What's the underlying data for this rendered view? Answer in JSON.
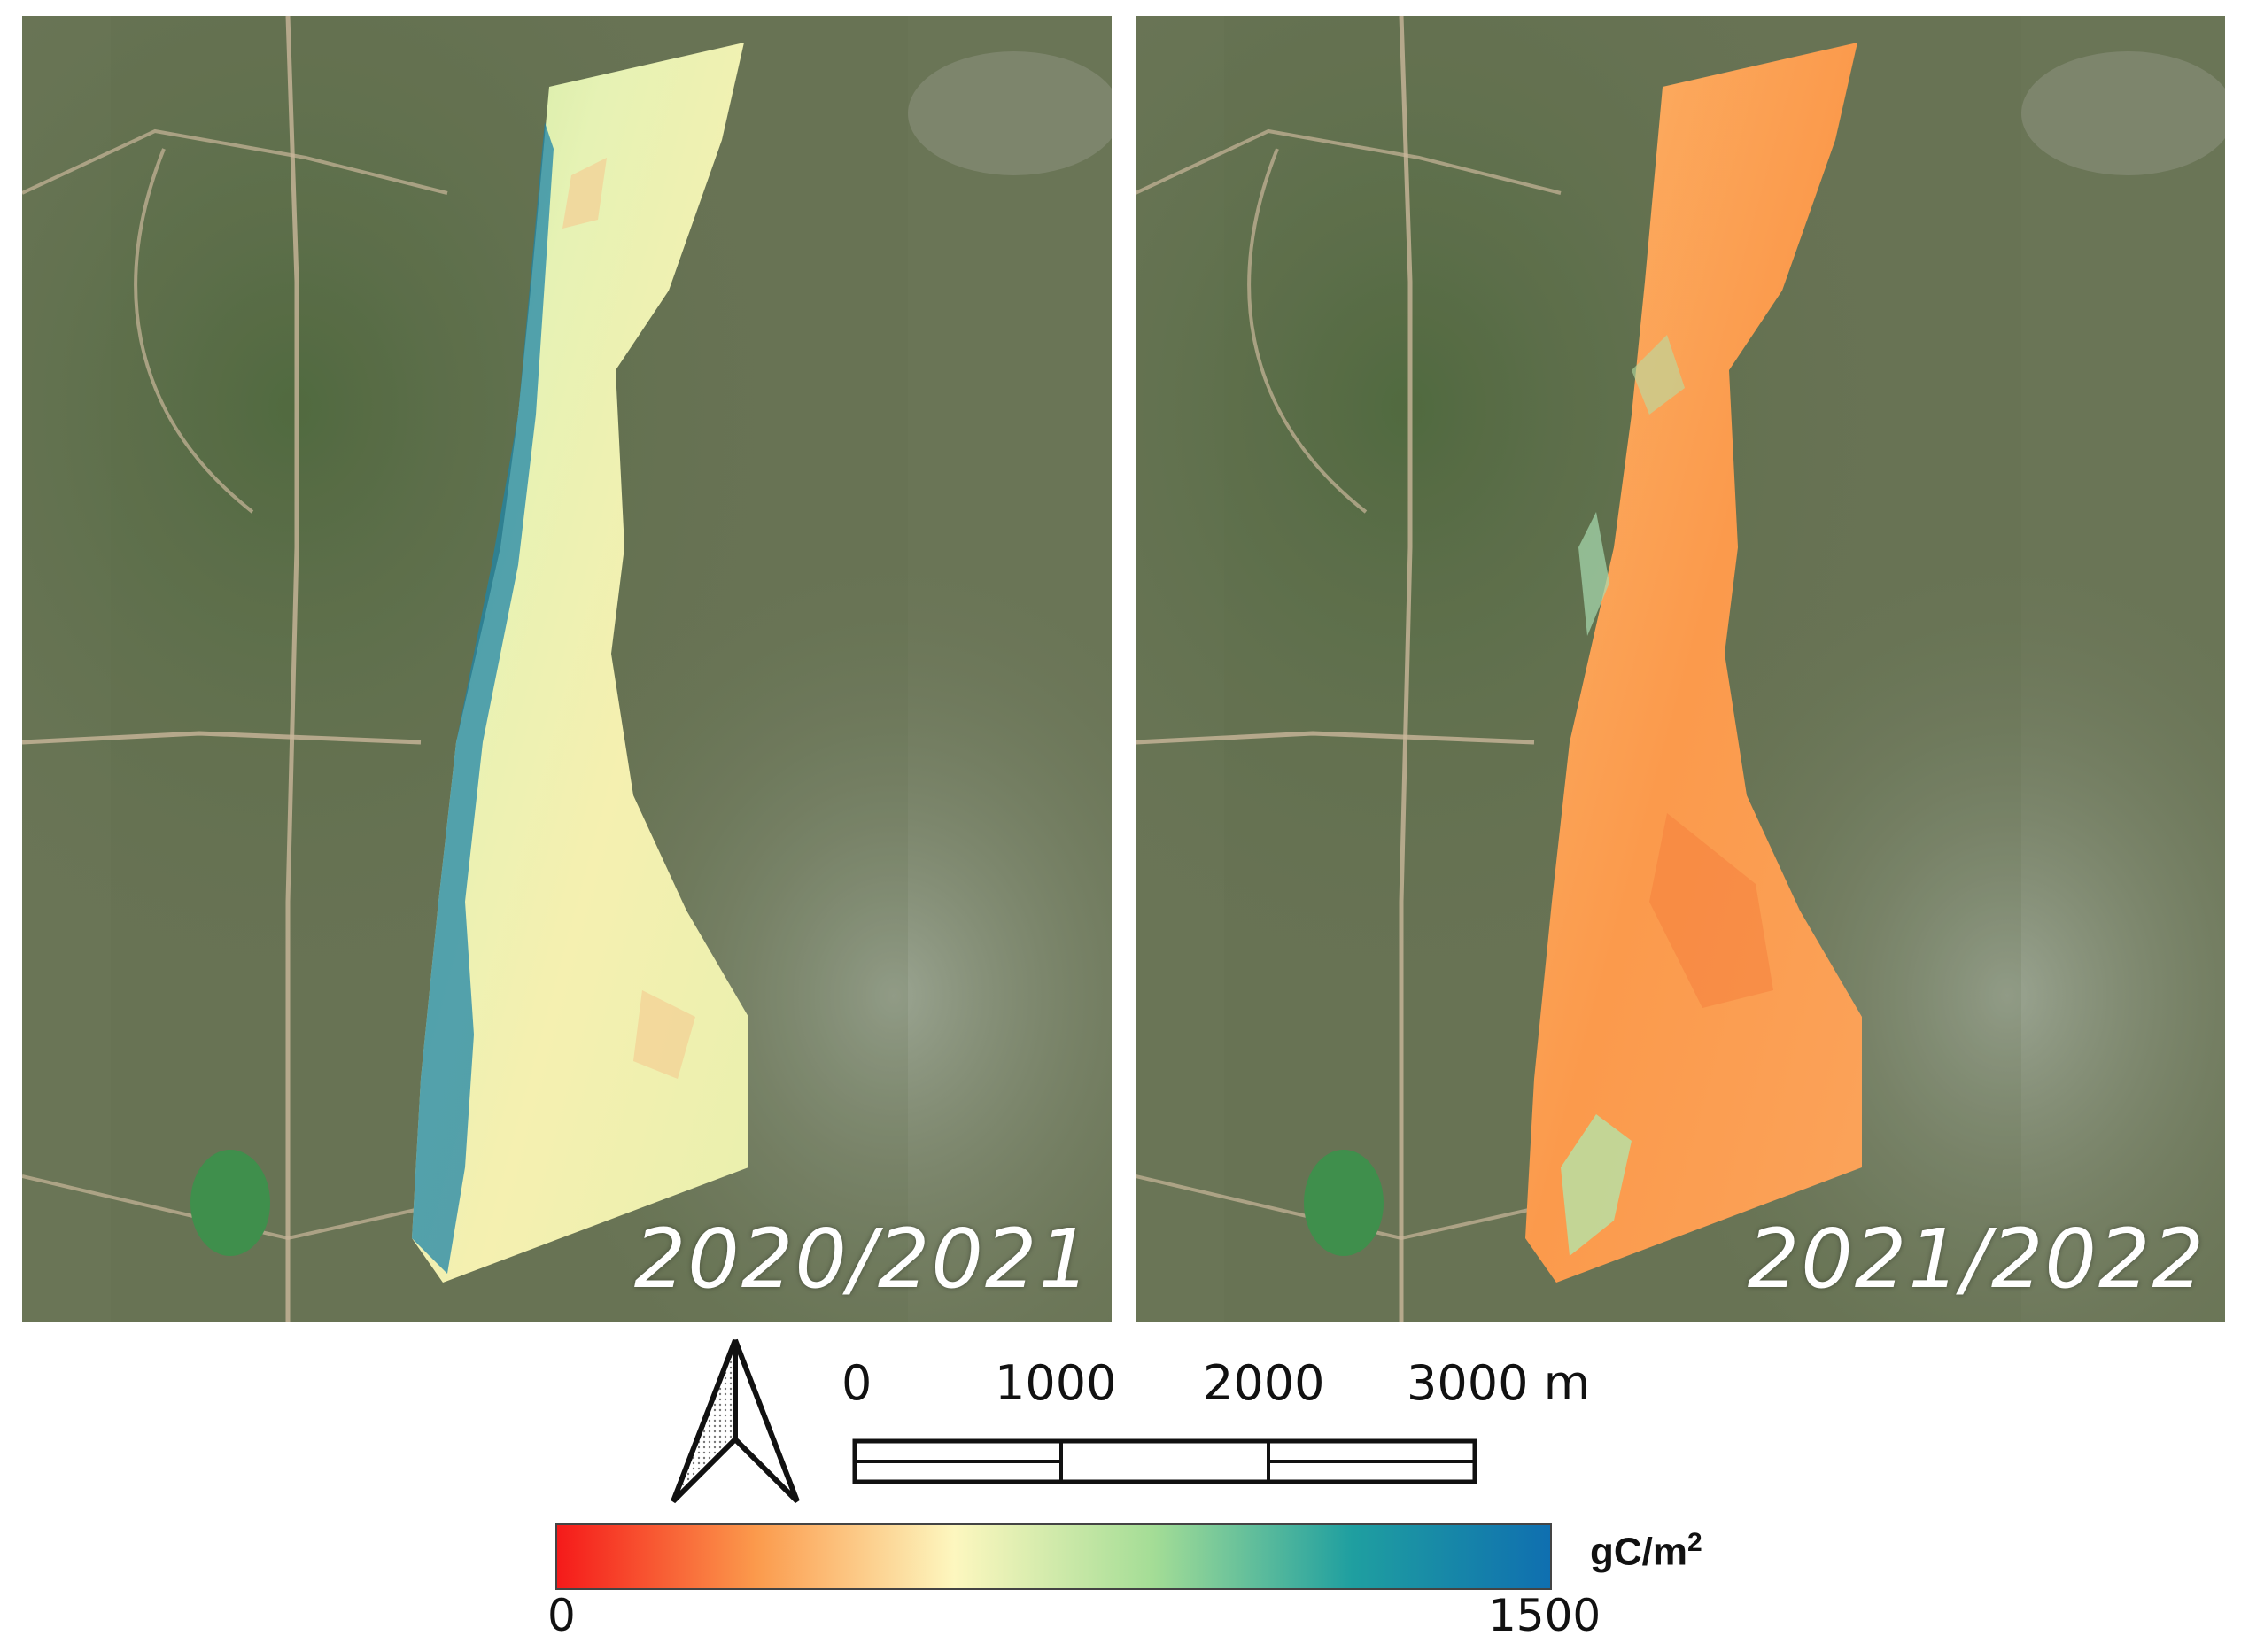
{
  "panels": [
    {
      "year_label": "2020/2021"
    },
    {
      "year_label": "2021/2022"
    }
  ],
  "scale_bar": {
    "ticks": [
      "0",
      "1000",
      "2000",
      "3000 m"
    ]
  },
  "colorbar": {
    "min_label": "0",
    "max_label": "1500",
    "unit_base": "gC/m",
    "unit_exp": "2",
    "stops": [
      "#f51a1a",
      "#fb9a4c",
      "#fdf7bf",
      "#a4dd96",
      "#1f9fa0",
      "#0f6fb0"
    ]
  },
  "colors": {
    "satellite_base": "#6c7558",
    "scale_bar_stroke": "#111111"
  }
}
